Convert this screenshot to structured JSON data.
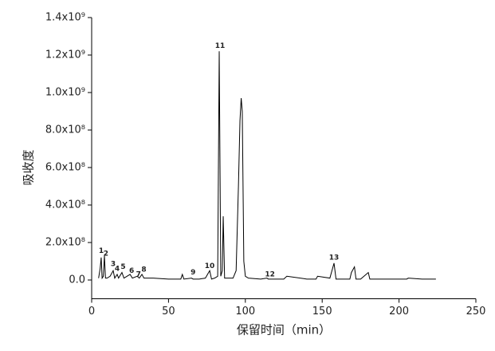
{
  "chart_data": {
    "type": "line",
    "x_label": "保留时间（min）",
    "y_label": "吸收度",
    "color": "#000000",
    "x": [
      4.5,
      5.5,
      6.2,
      6.8,
      7.6,
      8.3,
      9,
      10,
      12,
      14,
      15,
      16.6,
      17.5,
      19.7,
      21,
      23,
      25,
      26.5,
      29.6,
      31,
      32.7,
      34,
      40,
      50,
      58,
      59,
      60,
      65,
      66,
      70,
      74,
      76.8,
      78,
      80,
      82,
      83,
      84,
      85,
      85.6,
      86.5,
      88,
      92,
      94,
      95.5,
      96.5,
      97.3,
      98,
      99,
      100,
      102,
      110,
      114,
      115,
      125,
      127,
      140,
      146,
      147,
      155,
      157.7,
      159,
      168,
      169,
      171,
      172,
      175,
      180,
      181,
      185,
      195,
      205,
      206,
      215,
      224
    ],
    "values": [
      10000000.0,
      60000000.0,
      120000000.0,
      10000000.0,
      20000000.0,
      130000000.0,
      10000000.0,
      10000000.0,
      20000000.0,
      50000000.0,
      10000000.0,
      30000000.0,
      10000000.0,
      40000000.0,
      10000000.0,
      20000000.0,
      30000000.0,
      10000000.0,
      20000000.0,
      10000000.0,
      30000000.0,
      10000000.0,
      10000000.0,
      5000000.0,
      5000000.0,
      30000000.0,
      5000000.0,
      10000000.0,
      5000000.0,
      5000000.0,
      10000000.0,
      50000000.0,
      5000000.0,
      10000000.0,
      20000000.0,
      1220000000.0,
      20000000.0,
      50000000.0,
      340000000.0,
      10000000.0,
      10000000.0,
      10000000.0,
      50000000.0,
      500000000.0,
      850000000.0,
      970000000.0,
      900000000.0,
      100000000.0,
      20000000.0,
      10000000.0,
      5000000.0,
      10000000.0,
      5000000.0,
      5000000.0,
      20000000.0,
      5000000.0,
      5000000.0,
      20000000.0,
      10000000.0,
      90000000.0,
      5000000.0,
      5000000.0,
      40000000.0,
      70000000.0,
      5000000.0,
      5000000.0,
      40000000.0,
      5000000.0,
      5000000.0,
      5000000.0,
      5000000.0,
      10000000.0,
      5000000.0,
      5000000.0
    ],
    "xlim": [
      0,
      250
    ],
    "xticks": [
      0,
      50,
      100,
      150,
      200,
      250
    ],
    "ylim": [
      -100000000.0,
      1400000000.0
    ],
    "yticks": [
      {
        "value": 0,
        "label": "0.0"
      },
      {
        "value": 200000000.0,
        "label": "2.0x10⁸"
      },
      {
        "value": 400000000.0,
        "label": "4.0x10⁸"
      },
      {
        "value": 600000000.0,
        "label": "6.0x10⁸"
      },
      {
        "value": 800000000.0,
        "label": "8.0x10⁸"
      },
      {
        "value": 1000000000.0,
        "label": "1.0x10⁹"
      },
      {
        "value": 1200000000.0,
        "label": "1.2x10⁹"
      },
      {
        "value": 1400000000.0,
        "label": "1.4x10⁹"
      }
    ],
    "annotations": [
      {
        "text": "1",
        "x": 6.2,
        "y": 155000000.0
      },
      {
        "text": "2",
        "x": 9.3,
        "y": 140000000.0
      },
      {
        "text": "3",
        "x": 14,
        "y": 85000000.0
      },
      {
        "text": "4",
        "x": 16.6,
        "y": 60000000.0
      },
      {
        "text": "5",
        "x": 20.5,
        "y": 70000000.0
      },
      {
        "text": "6",
        "x": 26,
        "y": 50000000.0
      },
      {
        "text": "7",
        "x": 30.5,
        "y": 30000000.0
      },
      {
        "text": "8",
        "x": 34,
        "y": 55000000.0
      },
      {
        "text": "9",
        "x": 66,
        "y": 40000000.0
      },
      {
        "text": "10",
        "x": 76.8,
        "y": 75000000.0
      },
      {
        "text": "11",
        "x": 83.5,
        "y": 1250000000.0
      },
      {
        "text": "12",
        "x": 116,
        "y": 30000000.0
      },
      {
        "text": "13",
        "x": 157.7,
        "y": 120000000.0
      }
    ]
  }
}
